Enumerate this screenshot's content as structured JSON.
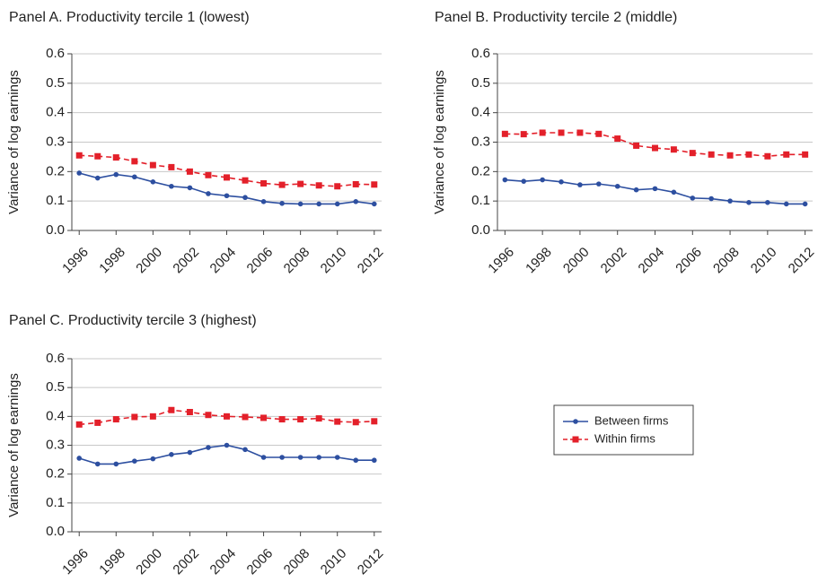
{
  "chart_data": [
    {
      "type": "line",
      "title": "Panel A. Productivity tercile 1 (lowest)",
      "y_label": "Variance of log earnings",
      "x": [
        1996,
        1997,
        1998,
        1999,
        2000,
        2001,
        2002,
        2003,
        2004,
        2005,
        2006,
        2007,
        2008,
        2009,
        2010,
        2011,
        2012
      ],
      "series": [
        {
          "name": "Between firms",
          "color": "#2d4fa0",
          "line_style": "solid",
          "marker": "circle",
          "values": [
            0.195,
            0.178,
            0.19,
            0.182,
            0.165,
            0.15,
            0.145,
            0.125,
            0.118,
            0.112,
            0.098,
            0.092,
            0.09,
            0.09,
            0.09,
            0.098,
            0.09
          ]
        },
        {
          "name": "Within firms",
          "color": "#e3202a",
          "line_style": "dashed",
          "marker": "square",
          "values": [
            0.255,
            0.252,
            0.248,
            0.235,
            0.222,
            0.215,
            0.2,
            0.188,
            0.18,
            0.17,
            0.16,
            0.155,
            0.158,
            0.153,
            0.15,
            0.157,
            0.156
          ]
        }
      ],
      "xlim": [
        1995.6,
        2012.4
      ],
      "xticks": [
        1996,
        1998,
        2000,
        2002,
        2004,
        2006,
        2008,
        2010,
        2012
      ],
      "ylim": [
        0,
        0.6
      ],
      "yticks": [
        {
          "value": 0,
          "label": "0.0"
        },
        0.1,
        0.2,
        0.3,
        0.4,
        0.5,
        0.6
      ],
      "grid": true
    },
    {
      "type": "line",
      "title": "Panel B. Productivity tercile 2 (middle)",
      "y_label": "Variance of log earnings",
      "x": [
        1996,
        1997,
        1998,
        1999,
        2000,
        2001,
        2002,
        2003,
        2004,
        2005,
        2006,
        2007,
        2008,
        2009,
        2010,
        2011,
        2012
      ],
      "series": [
        {
          "name": "Between firms",
          "color": "#2d4fa0",
          "line_style": "solid",
          "marker": "circle",
          "values": [
            0.172,
            0.167,
            0.172,
            0.165,
            0.155,
            0.158,
            0.15,
            0.138,
            0.142,
            0.13,
            0.11,
            0.108,
            0.1,
            0.095,
            0.095,
            0.09,
            0.09
          ]
        },
        {
          "name": "Within firms",
          "color": "#e3202a",
          "line_style": "dashed",
          "marker": "square",
          "values": [
            0.328,
            0.327,
            0.332,
            0.332,
            0.332,
            0.328,
            0.312,
            0.288,
            0.28,
            0.275,
            0.263,
            0.258,
            0.255,
            0.258,
            0.252,
            0.258,
            0.258
          ]
        }
      ],
      "xlim": [
        1995.6,
        2012.4
      ],
      "xticks": [
        1996,
        1998,
        2000,
        2002,
        2004,
        2006,
        2008,
        2010,
        2012
      ],
      "ylim": [
        0,
        0.6
      ],
      "yticks": [
        {
          "value": 0,
          "label": "0.0"
        },
        0.1,
        0.2,
        0.3,
        0.4,
        0.5,
        0.6
      ],
      "grid": true
    },
    {
      "type": "line",
      "title": "Panel C. Productivity tercile 3 (highest)",
      "y_label": "Variance of log earnings",
      "x": [
        1996,
        1997,
        1998,
        1999,
        2000,
        2001,
        2002,
        2003,
        2004,
        2005,
        2006,
        2007,
        2008,
        2009,
        2010,
        2011,
        2012
      ],
      "series": [
        {
          "name": "Between firms",
          "color": "#2d4fa0",
          "line_style": "solid",
          "marker": "circle",
          "values": [
            0.255,
            0.235,
            0.235,
            0.245,
            0.253,
            0.268,
            0.275,
            0.292,
            0.3,
            0.285,
            0.258,
            0.258,
            0.258,
            0.258,
            0.258,
            0.248,
            0.248
          ]
        },
        {
          "name": "Within firms",
          "color": "#e3202a",
          "line_style": "dashed",
          "marker": "square",
          "values": [
            0.372,
            0.378,
            0.39,
            0.398,
            0.4,
            0.422,
            0.415,
            0.405,
            0.4,
            0.398,
            0.395,
            0.39,
            0.39,
            0.393,
            0.382,
            0.38,
            0.383
          ]
        }
      ],
      "xlim": [
        1995.6,
        2012.4
      ],
      "xticks": [
        1996,
        1998,
        2000,
        2002,
        2004,
        2006,
        2008,
        2010,
        2012
      ],
      "ylim": [
        0,
        0.6
      ],
      "yticks": [
        {
          "value": 0,
          "label": "0.0"
        },
        0.1,
        0.2,
        0.3,
        0.4,
        0.5,
        0.6
      ],
      "grid": true
    }
  ]
}
